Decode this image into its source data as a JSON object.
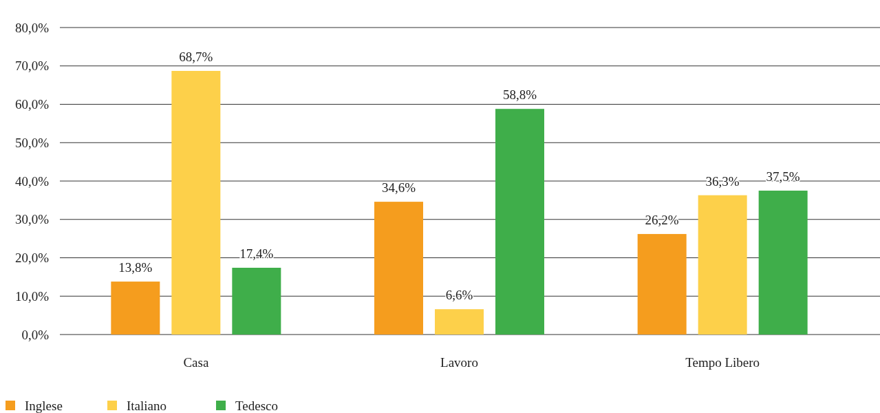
{
  "chart_data": {
    "type": "bar",
    "categories": [
      "Casa",
      "Lavoro",
      "Tempo Libero"
    ],
    "series": [
      {
        "name": "Inglese",
        "color": "#f59d1e",
        "values": [
          13.8,
          34.6,
          26.2
        ],
        "value_labels": [
          "13,8%",
          "34,6%",
          "26,2%"
        ]
      },
      {
        "name": "Italiano",
        "color": "#fdd04a",
        "values": [
          68.7,
          6.6,
          36.3
        ],
        "value_labels": [
          "68,7%",
          "6,6%",
          "36,3%"
        ]
      },
      {
        "name": "Tedesco",
        "color": "#3fae4a",
        "values": [
          17.4,
          58.8,
          37.5
        ],
        "value_labels": [
          "17,4%",
          "58,8%",
          "37,5%"
        ]
      }
    ],
    "ylim": [
      0,
      80
    ],
    "yticks": [
      {
        "value": 0,
        "label": "0,0%"
      },
      {
        "value": 10,
        "label": "10,0%"
      },
      {
        "value": 20,
        "label": "20,0%"
      },
      {
        "value": 30,
        "label": "30,0%"
      },
      {
        "value": 40,
        "label": "40,0%"
      },
      {
        "value": 50,
        "label": "50,0%"
      },
      {
        "value": 60,
        "label": "60,0%"
      },
      {
        "value": 70,
        "label": "70,0%"
      },
      {
        "value": 80,
        "label": "80,0%"
      }
    ],
    "grid": "y",
    "legend": "bottom left"
  }
}
